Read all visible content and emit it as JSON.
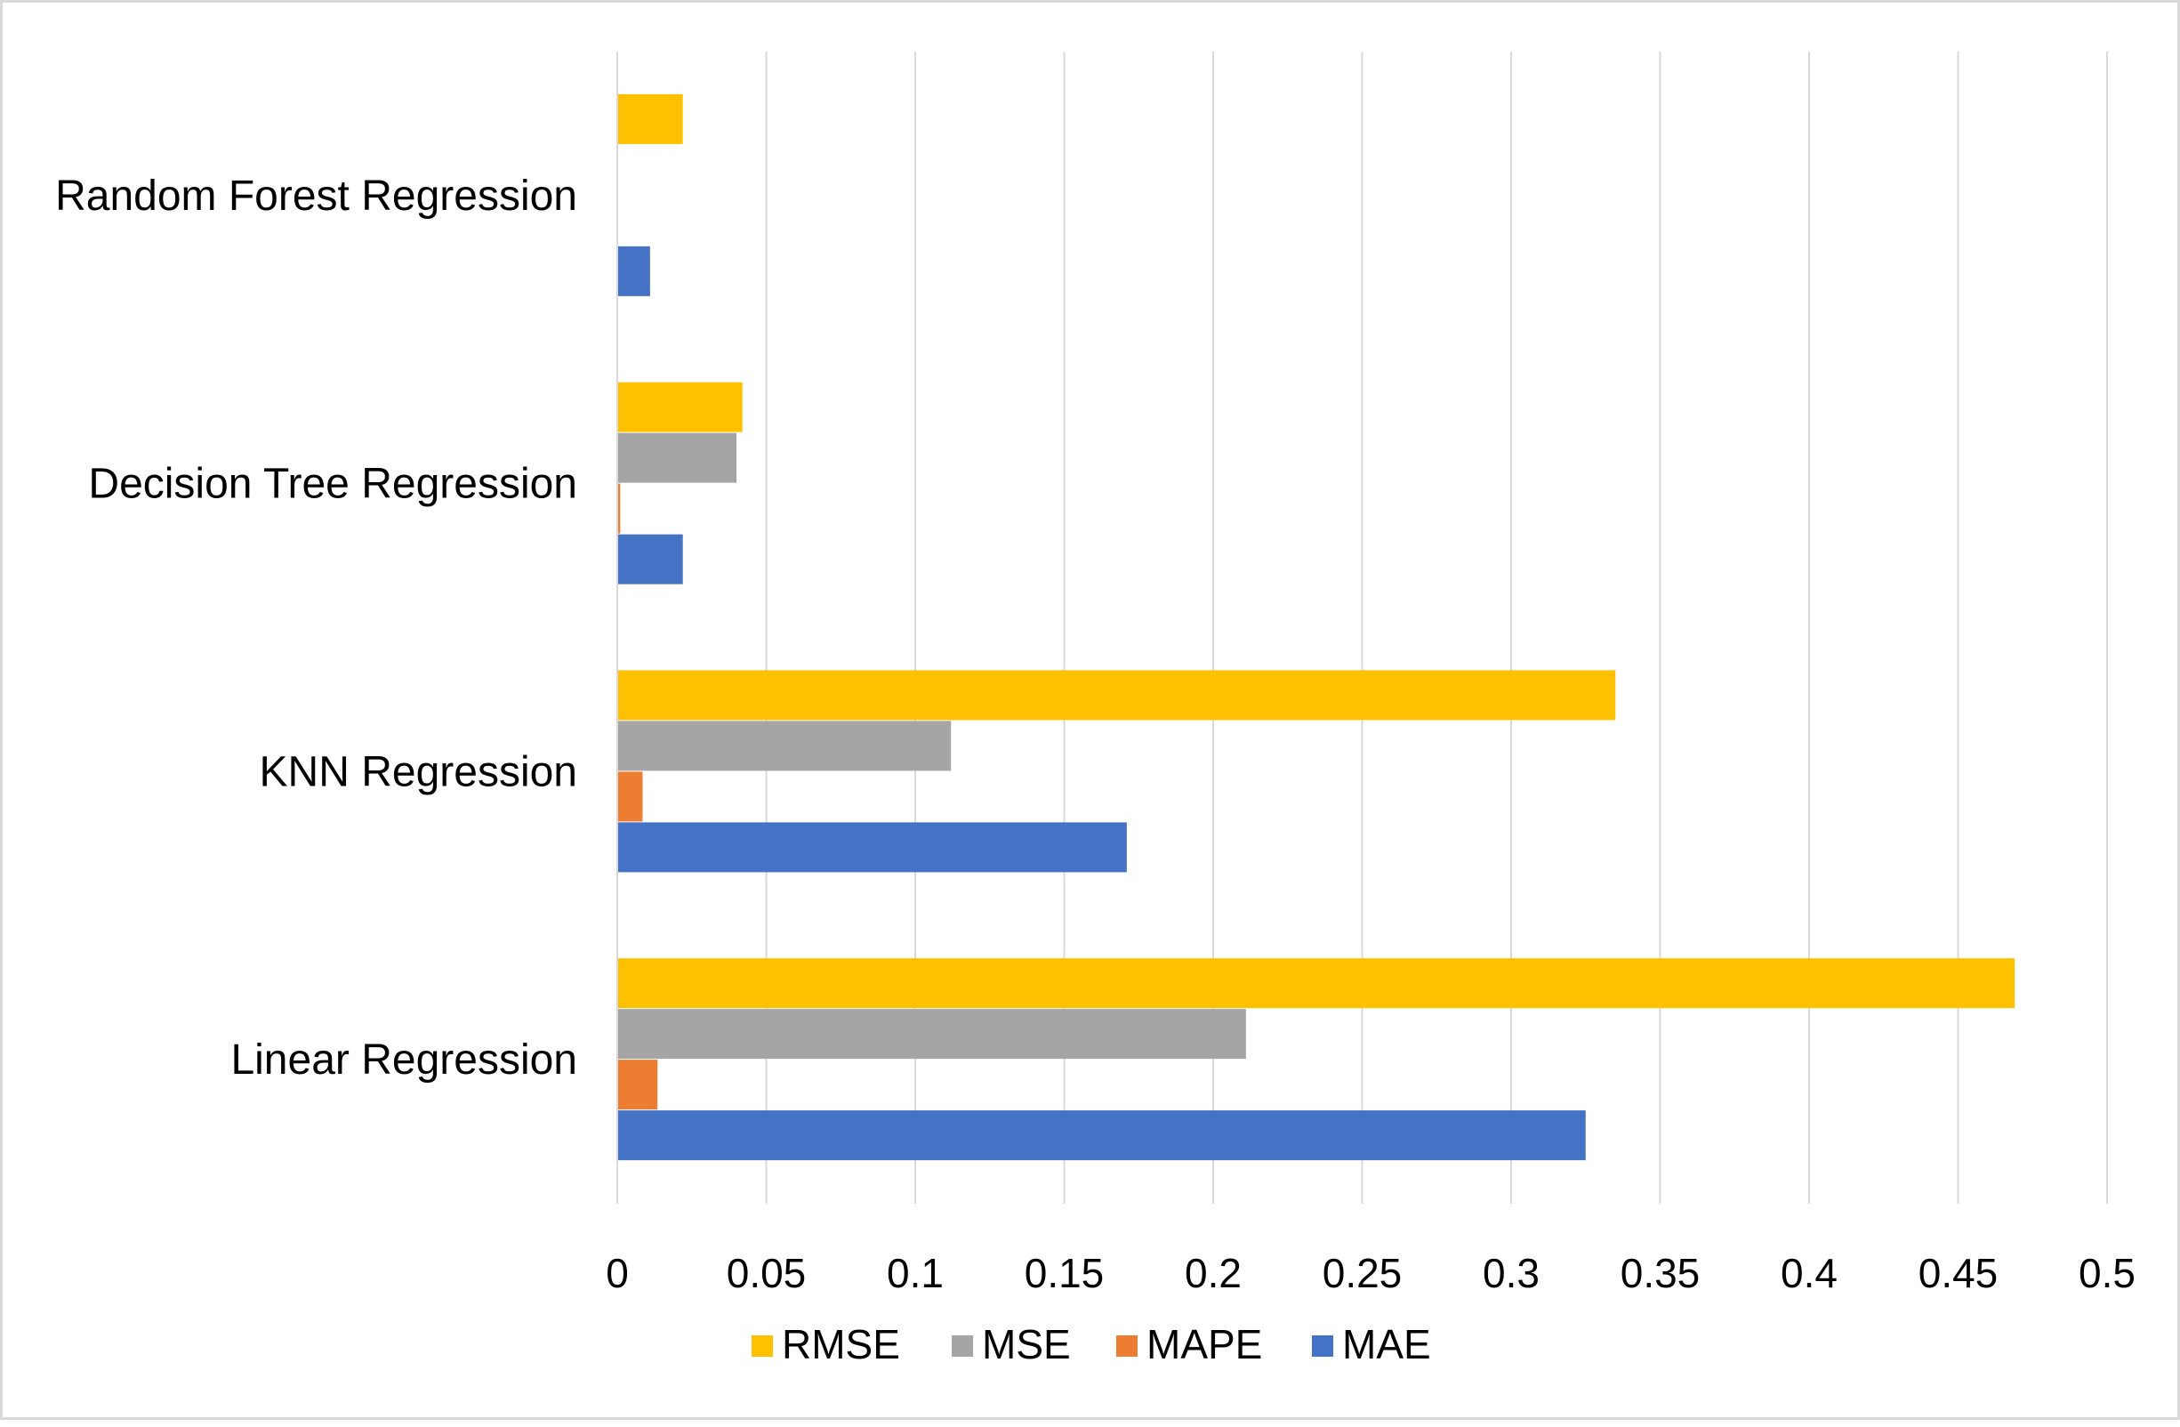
{
  "chart_data": {
    "type": "bar",
    "orientation": "horizontal",
    "categories": [
      "Linear Regression",
      "KNN Regression",
      "Decision Tree Regression",
      "Random Forest Regression"
    ],
    "series": [
      {
        "name": "MAE",
        "color": "#4472C4",
        "values": [
          0.325,
          0.171,
          0.022,
          0.011
        ]
      },
      {
        "name": "MAPE",
        "color": "#ED7D31",
        "values": [
          0.0135,
          0.0085,
          0.001,
          0
        ]
      },
      {
        "name": "MSE",
        "color": "#A5A5A5",
        "values": [
          0.211,
          0.112,
          0.04,
          0
        ]
      },
      {
        "name": "RMSE",
        "color": "#FFC000",
        "values": [
          0.469,
          0.335,
          0.042,
          0.022
        ]
      }
    ],
    "xlim": [
      0,
      0.5
    ],
    "x_ticks": [
      "0",
      "0.05",
      "0.1",
      "0.15",
      "0.2",
      "0.25",
      "0.3",
      "0.35",
      "0.4",
      "0.45",
      "0.5"
    ],
    "grid": true,
    "legend_position": "bottom",
    "legend_order": [
      "RMSE",
      "MSE",
      "MAPE",
      "MAE"
    ],
    "title": "",
    "xlabel": "",
    "ylabel": ""
  }
}
